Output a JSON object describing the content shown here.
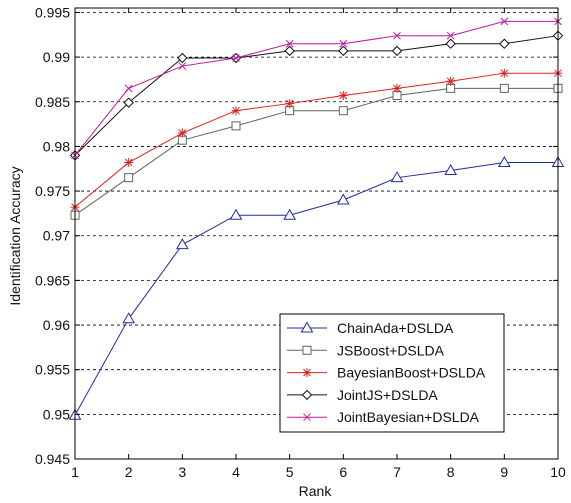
{
  "chart_data": {
    "type": "line",
    "xlabel": "Rank",
    "ylabel": "Identification   Accuracy",
    "x": [
      1,
      2,
      3,
      4,
      5,
      6,
      7,
      8,
      9,
      10
    ],
    "xlim": [
      1,
      10
    ],
    "ylim": [
      0.945,
      0.9955
    ],
    "xticks": [
      "1",
      "2",
      "3",
      "4",
      "5",
      "6",
      "7",
      "8",
      "9",
      "10"
    ],
    "yticks": [
      "0.945",
      "0.95",
      "0.955",
      "0.96",
      "0.965",
      "0.97",
      "0.975",
      "0.98",
      "0.985",
      "0.99",
      "0.995"
    ],
    "ytick_values": [
      0.945,
      0.95,
      0.955,
      0.96,
      0.965,
      0.97,
      0.975,
      0.98,
      0.985,
      0.99,
      0.995
    ],
    "grid": "horizontal dashed",
    "legend_position": "lower-right",
    "series": [
      {
        "name": "ChainAda+DSLDA",
        "color": "#1f2f9e",
        "marker": "triangle",
        "values": [
          0.9499,
          0.9607,
          0.969,
          0.9723,
          0.9723,
          0.974,
          0.9765,
          0.9773,
          0.9782,
          0.9782
        ]
      },
      {
        "name": "JSBoost+DSLDA",
        "color": "#5a6a5a",
        "marker": "square",
        "values": [
          0.9723,
          0.9765,
          0.9807,
          0.9823,
          0.984,
          0.984,
          0.9857,
          0.9865,
          0.9865,
          0.9865
        ]
      },
      {
        "name": "BayesianBoost+DSLDA",
        "color": "#e02020",
        "marker": "asterisk",
        "values": [
          0.9732,
          0.9782,
          0.9815,
          0.984,
          0.9848,
          0.9857,
          0.9865,
          0.9873,
          0.9882,
          0.9882
        ]
      },
      {
        "name": "JointJS+DSLDA",
        "color": "#111111",
        "marker": "diamond",
        "values": [
          0.979,
          0.9849,
          0.9899,
          0.9899,
          0.9907,
          0.9907,
          0.9907,
          0.9915,
          0.9915,
          0.9924
        ]
      },
      {
        "name": "JointBayesian+DSLDA",
        "color": "#c0189a",
        "marker": "x",
        "values": [
          0.979,
          0.9865,
          0.989,
          0.9899,
          0.9915,
          0.9915,
          0.9924,
          0.9924,
          0.994,
          0.994
        ]
      }
    ]
  }
}
